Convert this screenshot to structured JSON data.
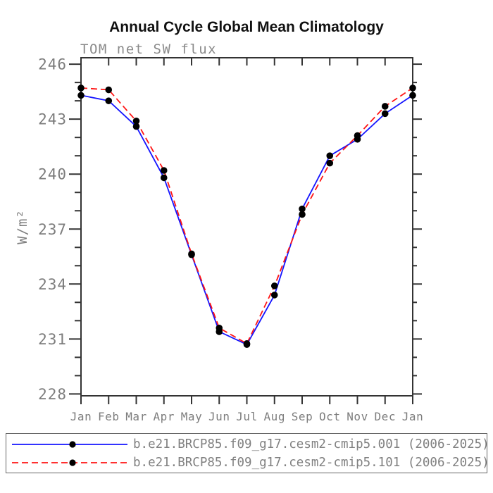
{
  "chart_data": {
    "type": "line",
    "title": "Annual Cycle Global Mean Climatology",
    "subtitle": "TOM net SW flux",
    "ylabel": "W/m²",
    "xlabel": "",
    "categories": [
      "Jan",
      "Feb",
      "Mar",
      "Apr",
      "May",
      "Jun",
      "Jul",
      "Aug",
      "Sep",
      "Oct",
      "Nov",
      "Dec",
      "Jan"
    ],
    "ylim": [
      227.9,
      246.35
    ],
    "yticks_major": [
      228,
      231,
      234,
      237,
      240,
      243,
      246
    ],
    "ytick_minor_step": 1,
    "grid": false,
    "legend_position": "bottom",
    "series": [
      {
        "name": "b.e21.BRCP85.f09_g17.cesm2-cmip5.001 (2006-2025)",
        "color": "#1414ff",
        "line_style": "solid",
        "marker": "filled-circle",
        "marker_color": "#000000",
        "values": [
          244.3,
          244.0,
          242.6,
          239.8,
          235.6,
          231.4,
          230.7,
          233.4,
          238.1,
          241.0,
          241.9,
          243.3,
          244.3
        ]
      },
      {
        "name": "b.e21.BRCP85.f09_g17.cesm2-cmip5.101 (2006-2025)",
        "color": "#ff1414",
        "line_style": "dashed",
        "marker": "filled-circle",
        "marker_color": "#000000",
        "values": [
          244.7,
          244.6,
          242.9,
          240.2,
          235.65,
          231.6,
          230.75,
          233.9,
          237.8,
          240.6,
          242.1,
          243.7,
          244.7
        ]
      }
    ],
    "axis_color": "#333333",
    "tick_label_color": "#7d7d7d"
  }
}
